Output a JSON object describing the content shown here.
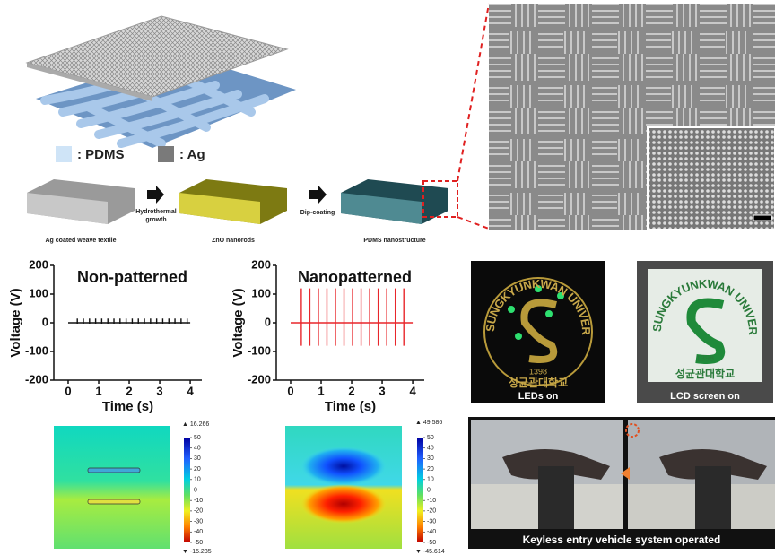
{
  "illustration": {
    "legend": [
      ": PDMS",
      ": Ag"
    ],
    "arrow_labels": {
      "hydrothermal": [
        "Hydrothermal",
        "growth"
      ],
      "dip": "Dip-coating"
    },
    "stage_labels": [
      "Ag coated weave textile",
      "ZnO nanorods",
      "PDMS nanostructure"
    ]
  },
  "chart_data": [
    {
      "type": "line",
      "title": "Non-patterned",
      "x_label": "Time (s)",
      "y_label": "Voltage (V)",
      "color": "#111111",
      "x": [
        0,
        0.3,
        0.3,
        0.3,
        0.3,
        0.5,
        0.5,
        0.5,
        0.5,
        0.7,
        0.7,
        0.7,
        0.7,
        0.9,
        0.9,
        0.9,
        0.9,
        1.1,
        1.1,
        1.1,
        1.1,
        1.3,
        1.3,
        1.3,
        1.3,
        1.5,
        1.5,
        1.5,
        1.5,
        1.7,
        1.7,
        1.7,
        1.7,
        1.9,
        1.9,
        1.9,
        1.9,
        2.1,
        2.1,
        2.1,
        2.1,
        2.3,
        2.3,
        2.3,
        2.3,
        2.5,
        2.5,
        2.5,
        2.5,
        2.7,
        2.7,
        2.7,
        2.7,
        2.9,
        2.9,
        2.9,
        2.9,
        3.1,
        3.1,
        3.1,
        3.1,
        3.3,
        3.3,
        3.3,
        3.3,
        3.5,
        3.5,
        3.5,
        3.5,
        3.7,
        3.7,
        3.7,
        3.7,
        3.9,
        3.9,
        3.9,
        3.9,
        4
      ],
      "values": [
        0,
        0,
        15,
        -3,
        0,
        0,
        15,
        -3,
        0,
        0,
        15,
        -3,
        0,
        0,
        15,
        -3,
        0,
        0,
        15,
        -3,
        0,
        0,
        15,
        -3,
        0,
        0,
        15,
        -3,
        0,
        0,
        15,
        -3,
        0,
        0,
        15,
        -3,
        0,
        0,
        15,
        -3,
        0,
        0,
        15,
        -3,
        0,
        0,
        15,
        -3,
        0,
        0,
        15,
        -3,
        0,
        0,
        15,
        -3,
        0,
        0,
        15,
        -3,
        0,
        0,
        15,
        -3,
        0,
        0,
        15,
        -3,
        0,
        0,
        15,
        -3,
        0,
        0,
        15,
        -3,
        0,
        0
      ],
      "xlim": [
        -0.47,
        4.38
      ],
      "xticks": [
        0,
        1,
        2,
        3,
        4
      ],
      "ylim": [
        -200,
        200
      ],
      "yticks": [
        -200,
        -100,
        0,
        100,
        200
      ]
    },
    {
      "type": "line",
      "title": "Nanopatterned",
      "x_label": "Time (s)",
      "y_label": "Voltage (V)",
      "color": "#e8262b",
      "x": [
        0,
        0.35,
        0.35,
        0.35,
        0.35,
        0.63,
        0.63,
        0.63,
        0.63,
        0.91,
        0.91,
        0.91,
        0.91,
        1.19,
        1.19,
        1.19,
        1.19,
        1.47,
        1.47,
        1.47,
        1.47,
        1.75,
        1.75,
        1.75,
        1.75,
        2.03,
        2.03,
        2.03,
        2.03,
        2.31,
        2.31,
        2.31,
        2.31,
        2.59,
        2.59,
        2.59,
        2.59,
        2.87,
        2.87,
        2.87,
        2.87,
        3.15,
        3.15,
        3.15,
        3.15,
        3.43,
        3.43,
        3.43,
        3.43,
        3.71,
        3.71,
        3.71,
        3.71,
        4
      ],
      "values": [
        0,
        0,
        120,
        -80,
        0,
        0,
        120,
        -80,
        0,
        0,
        120,
        -80,
        0,
        0,
        120,
        -80,
        0,
        0,
        120,
        -80,
        0,
        0,
        120,
        -80,
        0,
        0,
        120,
        -80,
        0,
        0,
        120,
        -80,
        0,
        0,
        120,
        -80,
        0,
        0,
        120,
        -80,
        0,
        0,
        120,
        -80,
        0,
        0,
        120,
        -80,
        0,
        0,
        120,
        -80,
        0,
        0
      ],
      "xlim": [
        -0.47,
        4.38
      ],
      "xticks": [
        0,
        1,
        2,
        3,
        4
      ],
      "ylim": [
        -200,
        200
      ],
      "yticks": [
        -200,
        -100,
        0,
        100,
        200
      ]
    }
  ],
  "field_maps": [
    {
      "max_label": "▲ 16.266",
      "min_label": "▼ -15.235",
      "colorbar_ticks": [
        50,
        40,
        30,
        20,
        10,
        0,
        -10,
        -20,
        -30,
        -40,
        -50
      ]
    },
    {
      "max_label": "▲ 49.586",
      "min_label": "▼ -45.614",
      "colorbar_ticks": [
        50,
        40,
        30,
        20,
        10,
        0,
        -10,
        -20,
        -30,
        -40,
        -50
      ]
    }
  ],
  "photos": {
    "leds": "LEDs on",
    "lcd": "LCD screen on",
    "keyless": "Keyless entry vehicle system operated",
    "logo_text": "SUNGKYUNKWAN UNIVERSITY",
    "logo_year": "1398",
    "logo_korean": "성균관대학교"
  }
}
